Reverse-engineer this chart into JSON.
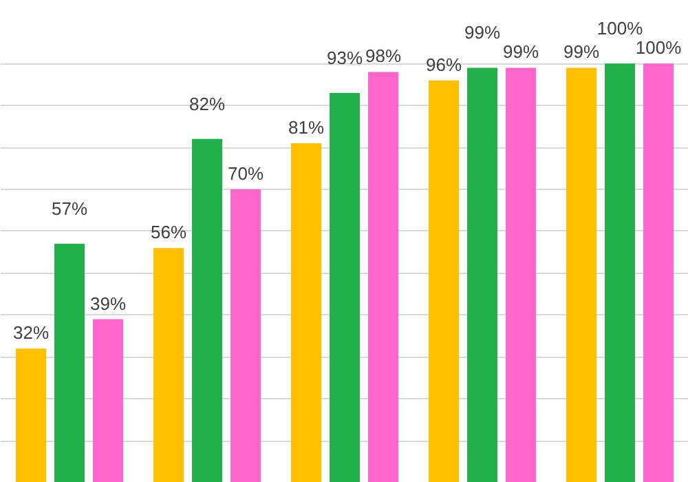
{
  "chart_data": {
    "type": "bar",
    "categories": [
      null,
      null,
      null,
      null,
      null
    ],
    "series": [
      {
        "color": "#ffc000",
        "values": [
          32,
          56,
          81,
          96,
          99
        ],
        "value_labels": [
          "32%",
          "56%",
          "81%",
          "96%",
          "99%"
        ]
      },
      {
        "color": "#22b04b",
        "values": [
          57,
          82,
          93,
          99,
          100
        ],
        "value_labels": [
          "57%",
          "82%",
          "93%",
          "99%",
          "100%"
        ]
      },
      {
        "color": "#ff66cc",
        "values": [
          39,
          70,
          98,
          99,
          100
        ],
        "value_labels": [
          "39%",
          "70%",
          "98%",
          "99%",
          "100%"
        ]
      }
    ],
    "ylim": [
      0,
      115
    ],
    "yticks": [
      {
        "value": 10,
        "label": null
      },
      {
        "value": 20,
        "label": null
      },
      {
        "value": 30,
        "label": null
      },
      {
        "value": 40,
        "label": null
      },
      {
        "value": 50,
        "label": null
      },
      {
        "value": 60,
        "label": null
      },
      {
        "value": 70,
        "label": null
      },
      {
        "value": 80,
        "label": null
      },
      {
        "value": 90,
        "label": null
      },
      {
        "value": 100,
        "label": null
      }
    ],
    "grid": "y",
    "tick_labels": false
  }
}
